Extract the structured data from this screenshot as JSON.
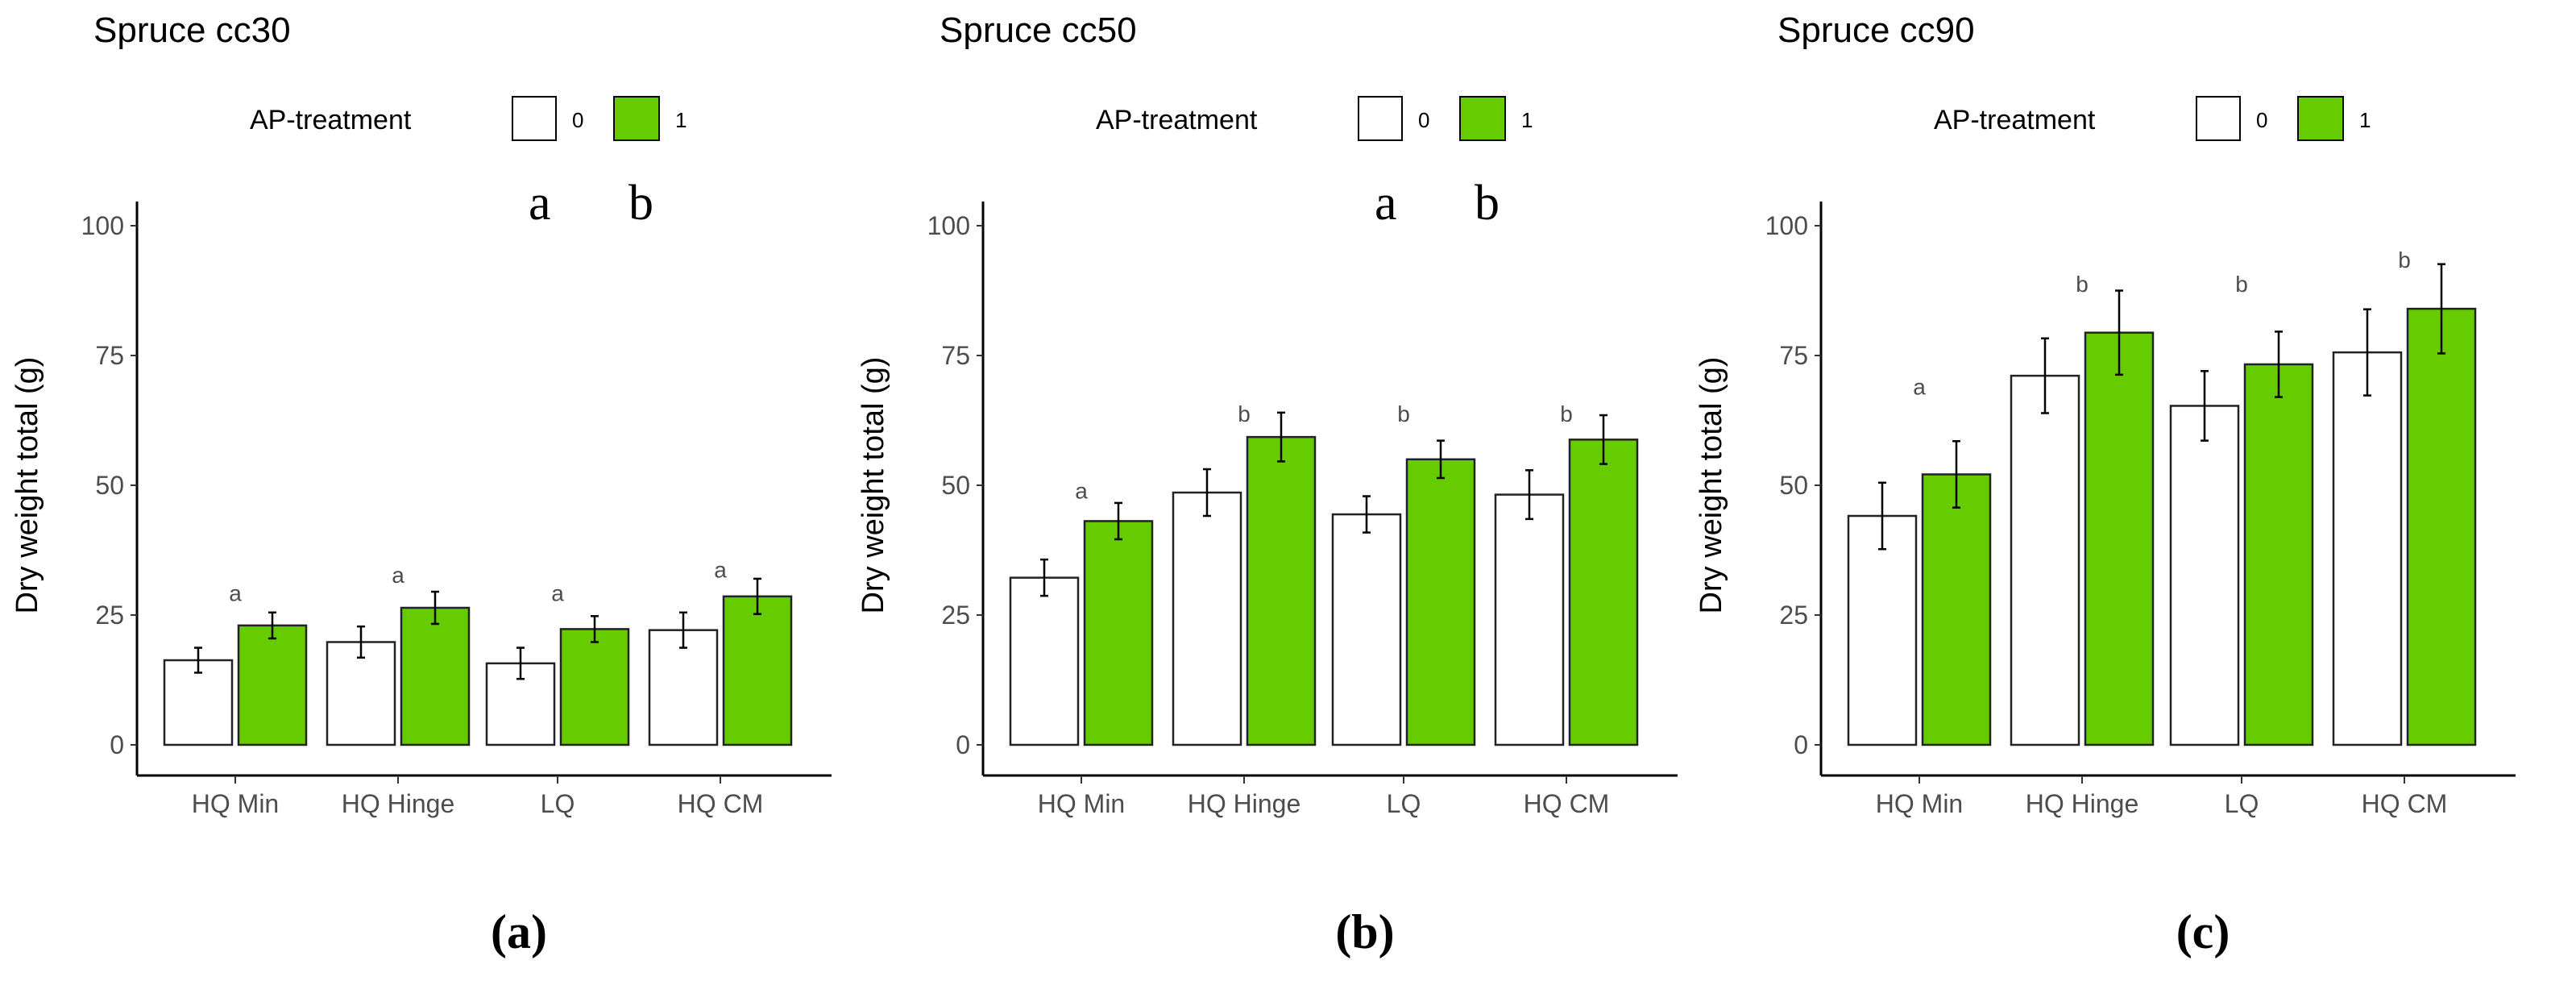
{
  "colors": {
    "treat0": "#ffffff",
    "treat1": "#66cc00",
    "axis": "#000000"
  },
  "chart_data": [
    {
      "type": "bar",
      "title": "Spruce cc30",
      "panel_label": "(a)",
      "legend_title": "AP-treatment",
      "legend_entries": [
        "0",
        "1"
      ],
      "legend_letters": [
        "a",
        "b"
      ],
      "categories": [
        "HQ Min",
        "HQ Hinge",
        "LQ",
        "HQ CM"
      ],
      "ylabel": "Dry weight total (g)",
      "ylim": [
        0,
        100
      ],
      "yticks": [
        "0",
        "25",
        "50",
        "75",
        "100"
      ],
      "series": [
        {
          "name": "0",
          "values": [
            16.3,
            19.8,
            15.7,
            22.1
          ],
          "errors": [
            2.4,
            3.0,
            3.0,
            3.4
          ]
        },
        {
          "name": "1",
          "values": [
            23.0,
            26.4,
            22.3,
            28.6
          ],
          "errors": [
            2.5,
            3.1,
            2.5,
            3.4
          ]
        }
      ],
      "letters": [
        "a",
        "a",
        "a",
        "a"
      ],
      "letter_y": [
        29.3,
        32.8,
        29.3,
        33.8
      ]
    },
    {
      "type": "bar",
      "title": "Spruce cc50",
      "panel_label": "(b)",
      "legend_title": "AP-treatment",
      "legend_entries": [
        "0",
        "1"
      ],
      "legend_letters": [
        "a",
        "b"
      ],
      "categories": [
        "HQ Min",
        "HQ Hinge",
        "LQ",
        "HQ CM"
      ],
      "ylabel": "Dry weight total (g)",
      "ylim": [
        0,
        100
      ],
      "yticks": [
        "0",
        "25",
        "50",
        "75",
        "100"
      ],
      "series": [
        {
          "name": "0",
          "values": [
            32.2,
            48.6,
            44.4,
            48.2
          ],
          "errors": [
            3.5,
            4.5,
            3.5,
            4.7
          ]
        },
        {
          "name": "1",
          "values": [
            43.1,
            59.3,
            55.0,
            58.8
          ],
          "errors": [
            3.5,
            4.7,
            3.6,
            4.7
          ]
        }
      ],
      "letters": [
        "a",
        "b",
        "b",
        "b"
      ],
      "letter_y": [
        49.0,
        63.8,
        63.8,
        63.8
      ]
    },
    {
      "type": "bar",
      "title": "Spruce cc90",
      "panel_label": "(c)",
      "legend_title": "AP-treatment",
      "legend_entries": [
        "0",
        "1"
      ],
      "legend_letters": [],
      "categories": [
        "HQ Min",
        "HQ Hinge",
        "LQ",
        "HQ CM"
      ],
      "ylabel": "Dry weight total (g)",
      "ylim": [
        0,
        100
      ],
      "yticks": [
        "0",
        "25",
        "50",
        "75",
        "100"
      ],
      "series": [
        {
          "name": "0",
          "values": [
            44.1,
            71.1,
            65.3,
            75.6
          ],
          "errors": [
            6.4,
            7.2,
            6.7,
            8.3
          ]
        },
        {
          "name": "1",
          "values": [
            52.1,
            79.4,
            73.3,
            84.0
          ],
          "errors": [
            6.4,
            8.1,
            6.3,
            8.6
          ]
        }
      ],
      "letters": [
        "a",
        "b",
        "b",
        "b"
      ],
      "letter_y": [
        69.0,
        88.8,
        88.8,
        93.5
      ]
    }
  ]
}
